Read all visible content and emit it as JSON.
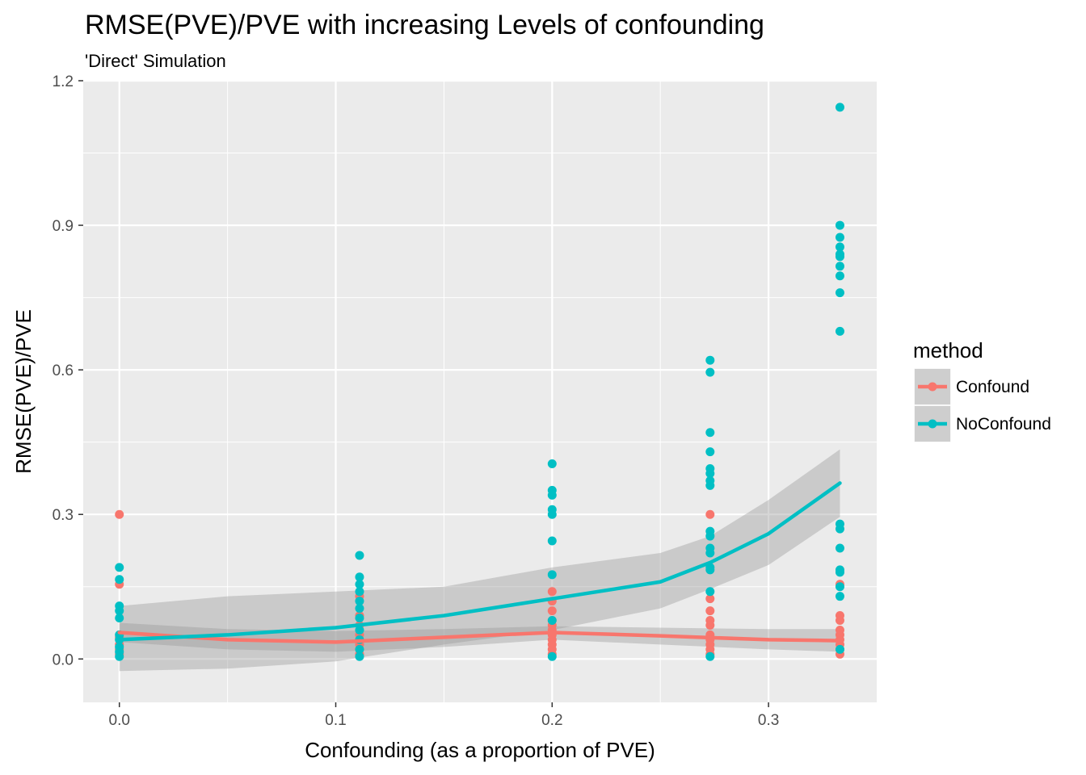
{
  "chart_data": {
    "type": "scatter",
    "title": "RMSE(PVE)/PVE with increasing Levels of confounding",
    "subtitle": "'Direct' Simulation",
    "xlabel": "Confounding (as a proportion of PVE)",
    "ylabel": "RMSE(PVE)/PVE",
    "xlim": [
      -0.0167,
      0.35
    ],
    "ylim": [
      -0.09,
      1.2
    ],
    "x_ticks": [
      0.0,
      0.1,
      0.2,
      0.3
    ],
    "x_tick_labels": [
      "0.0",
      "0.1",
      "0.2",
      "0.3"
    ],
    "y_ticks": [
      0.0,
      0.3,
      0.6,
      0.9,
      1.2
    ],
    "y_tick_labels": [
      "0.0",
      "0.3",
      "0.6",
      "0.9",
      "1.2"
    ],
    "grid": true,
    "legend": {
      "title": "method",
      "position": "right",
      "entries": [
        "Confound",
        "NoConfound"
      ]
    },
    "series": [
      {
        "name": "Confound",
        "color": "#F8766D",
        "points": [
          [
            0.0,
            0.3
          ],
          [
            0.0,
            0.155
          ],
          [
            0.0,
            0.045
          ],
          [
            0.0,
            0.03
          ],
          [
            0.0,
            0.02
          ],
          [
            0.0,
            0.01
          ],
          [
            0.111,
            0.13
          ],
          [
            0.111,
            0.09
          ],
          [
            0.111,
            0.07
          ],
          [
            0.111,
            0.05
          ],
          [
            0.111,
            0.03
          ],
          [
            0.111,
            0.01
          ],
          [
            0.2,
            0.14
          ],
          [
            0.2,
            0.12
          ],
          [
            0.2,
            0.1
          ],
          [
            0.2,
            0.08
          ],
          [
            0.2,
            0.07
          ],
          [
            0.2,
            0.06
          ],
          [
            0.2,
            0.05
          ],
          [
            0.2,
            0.04
          ],
          [
            0.2,
            0.03
          ],
          [
            0.2,
            0.02
          ],
          [
            0.2,
            0.01
          ],
          [
            0.273,
            0.3
          ],
          [
            0.273,
            0.125
          ],
          [
            0.273,
            0.1
          ],
          [
            0.273,
            0.08
          ],
          [
            0.273,
            0.07
          ],
          [
            0.273,
            0.05
          ],
          [
            0.273,
            0.04
          ],
          [
            0.273,
            0.03
          ],
          [
            0.273,
            0.02
          ],
          [
            0.273,
            0.01
          ],
          [
            0.333,
            0.155
          ],
          [
            0.333,
            0.09
          ],
          [
            0.333,
            0.08
          ],
          [
            0.333,
            0.06
          ],
          [
            0.333,
            0.05
          ],
          [
            0.333,
            0.04
          ],
          [
            0.333,
            0.03
          ],
          [
            0.333,
            0.02
          ],
          [
            0.333,
            0.01
          ]
        ],
        "trend": [
          [
            0.0,
            0.055
          ],
          [
            0.05,
            0.04
          ],
          [
            0.1,
            0.035
          ],
          [
            0.15,
            0.045
          ],
          [
            0.2,
            0.055
          ],
          [
            0.25,
            0.048
          ],
          [
            0.3,
            0.04
          ],
          [
            0.333,
            0.038
          ]
        ],
        "band_upper": [
          [
            0.0,
            0.075
          ],
          [
            0.05,
            0.062
          ],
          [
            0.1,
            0.058
          ],
          [
            0.15,
            0.062
          ],
          [
            0.2,
            0.068
          ],
          [
            0.25,
            0.065
          ],
          [
            0.3,
            0.062
          ],
          [
            0.333,
            0.062
          ]
        ],
        "band_lower": [
          [
            0.0,
            0.035
          ],
          [
            0.05,
            0.02
          ],
          [
            0.1,
            0.015
          ],
          [
            0.15,
            0.025
          ],
          [
            0.2,
            0.04
          ],
          [
            0.25,
            0.03
          ],
          [
            0.3,
            0.02
          ],
          [
            0.333,
            0.015
          ]
        ]
      },
      {
        "name": "NoConfound",
        "color": "#00BFC4",
        "points": [
          [
            0.0,
            0.19
          ],
          [
            0.0,
            0.165
          ],
          [
            0.0,
            0.11
          ],
          [
            0.0,
            0.1
          ],
          [
            0.0,
            0.085
          ],
          [
            0.0,
            0.05
          ],
          [
            0.0,
            0.04
          ],
          [
            0.0,
            0.025
          ],
          [
            0.0,
            0.015
          ],
          [
            0.0,
            0.005
          ],
          [
            0.111,
            0.215
          ],
          [
            0.111,
            0.17
          ],
          [
            0.111,
            0.155
          ],
          [
            0.111,
            0.14
          ],
          [
            0.111,
            0.12
          ],
          [
            0.111,
            0.105
          ],
          [
            0.111,
            0.085
          ],
          [
            0.111,
            0.06
          ],
          [
            0.111,
            0.04
          ],
          [
            0.111,
            0.02
          ],
          [
            0.111,
            0.005
          ],
          [
            0.2,
            0.405
          ],
          [
            0.2,
            0.35
          ],
          [
            0.2,
            0.34
          ],
          [
            0.2,
            0.31
          ],
          [
            0.2,
            0.3
          ],
          [
            0.2,
            0.245
          ],
          [
            0.2,
            0.175
          ],
          [
            0.2,
            0.08
          ],
          [
            0.2,
            0.005
          ],
          [
            0.273,
            0.62
          ],
          [
            0.273,
            0.595
          ],
          [
            0.273,
            0.47
          ],
          [
            0.273,
            0.43
          ],
          [
            0.273,
            0.395
          ],
          [
            0.273,
            0.385
          ],
          [
            0.273,
            0.37
          ],
          [
            0.273,
            0.36
          ],
          [
            0.273,
            0.265
          ],
          [
            0.273,
            0.255
          ],
          [
            0.273,
            0.23
          ],
          [
            0.273,
            0.22
          ],
          [
            0.273,
            0.19
          ],
          [
            0.273,
            0.185
          ],
          [
            0.273,
            0.14
          ],
          [
            0.273,
            0.005
          ],
          [
            0.333,
            1.145
          ],
          [
            0.333,
            0.9
          ],
          [
            0.333,
            0.875
          ],
          [
            0.333,
            0.855
          ],
          [
            0.333,
            0.84
          ],
          [
            0.333,
            0.835
          ],
          [
            0.333,
            0.815
          ],
          [
            0.333,
            0.795
          ],
          [
            0.333,
            0.76
          ],
          [
            0.333,
            0.68
          ],
          [
            0.333,
            0.28
          ],
          [
            0.333,
            0.27
          ],
          [
            0.333,
            0.23
          ],
          [
            0.333,
            0.185
          ],
          [
            0.333,
            0.18
          ],
          [
            0.333,
            0.15
          ],
          [
            0.333,
            0.13
          ],
          [
            0.333,
            0.02
          ]
        ],
        "trend": [
          [
            0.0,
            0.04
          ],
          [
            0.05,
            0.05
          ],
          [
            0.1,
            0.065
          ],
          [
            0.15,
            0.09
          ],
          [
            0.2,
            0.125
          ],
          [
            0.25,
            0.16
          ],
          [
            0.273,
            0.2
          ],
          [
            0.3,
            0.26
          ],
          [
            0.333,
            0.365
          ]
        ],
        "band_upper": [
          [
            0.0,
            0.11
          ],
          [
            0.05,
            0.13
          ],
          [
            0.1,
            0.14
          ],
          [
            0.15,
            0.15
          ],
          [
            0.2,
            0.19
          ],
          [
            0.25,
            0.22
          ],
          [
            0.273,
            0.255
          ],
          [
            0.3,
            0.33
          ],
          [
            0.333,
            0.435
          ]
        ],
        "band_lower": [
          [
            0.0,
            -0.025
          ],
          [
            0.05,
            -0.02
          ],
          [
            0.1,
            -0.005
          ],
          [
            0.15,
            0.03
          ],
          [
            0.2,
            0.06
          ],
          [
            0.25,
            0.105
          ],
          [
            0.273,
            0.145
          ],
          [
            0.3,
            0.195
          ],
          [
            0.333,
            0.295
          ]
        ]
      }
    ]
  }
}
